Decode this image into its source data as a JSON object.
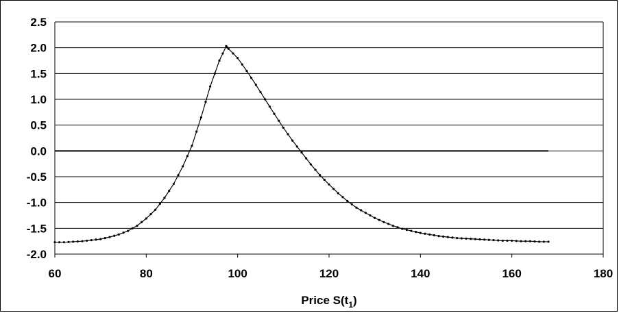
{
  "chart_data": {
    "type": "line",
    "xlabel": "Price S(t",
    "xlabel_sub": "1",
    "xlabel_close": ")",
    "ylabel": "",
    "xlim": [
      60,
      180
    ],
    "ylim": [
      -2.0,
      2.5
    ],
    "x_ticks": [
      "60",
      "80",
      "100",
      "120",
      "140",
      "160",
      "180"
    ],
    "y_ticks": [
      "2.5",
      "2.0",
      "1.5",
      "1.0",
      "0.5",
      "0.0",
      "-0.5",
      "-1.0",
      "-1.5",
      "-2.0"
    ],
    "grid": true,
    "legend": "none",
    "series": [
      {
        "x": [
          60,
          62,
          64,
          66,
          68,
          70,
          72,
          74,
          76,
          78,
          80,
          82,
          84,
          86,
          88,
          90,
          92,
          94,
          96,
          97.5,
          98,
          100,
          102,
          104,
          106,
          108,
          110,
          112,
          114,
          116,
          118,
          120,
          122,
          124,
          126,
          128,
          130,
          132,
          134,
          136,
          138,
          140,
          142,
          144,
          146,
          148,
          150,
          152,
          154,
          156,
          158,
          160,
          162,
          164,
          166,
          168
        ],
        "y": [
          -1.77,
          -1.77,
          -1.76,
          -1.75,
          -1.73,
          -1.71,
          -1.67,
          -1.62,
          -1.55,
          -1.45,
          -1.31,
          -1.14,
          -0.91,
          -0.64,
          -0.3,
          0.1,
          0.65,
          1.25,
          1.75,
          2.03,
          1.98,
          1.8,
          1.55,
          1.28,
          1.0,
          0.72,
          0.45,
          0.2,
          -0.03,
          -0.26,
          -0.47,
          -0.65,
          -0.82,
          -0.97,
          -1.1,
          -1.2,
          -1.3,
          -1.38,
          -1.45,
          -1.51,
          -1.55,
          -1.59,
          -1.62,
          -1.65,
          -1.67,
          -1.69,
          -1.7,
          -1.71,
          -1.72,
          -1.73,
          -1.74,
          -1.74,
          -1.75,
          -1.75,
          -1.76,
          -1.76
        ],
        "color": "#000000"
      }
    ],
    "zero_line": {
      "x_from": 60,
      "x_to": 168,
      "y": 0
    }
  }
}
